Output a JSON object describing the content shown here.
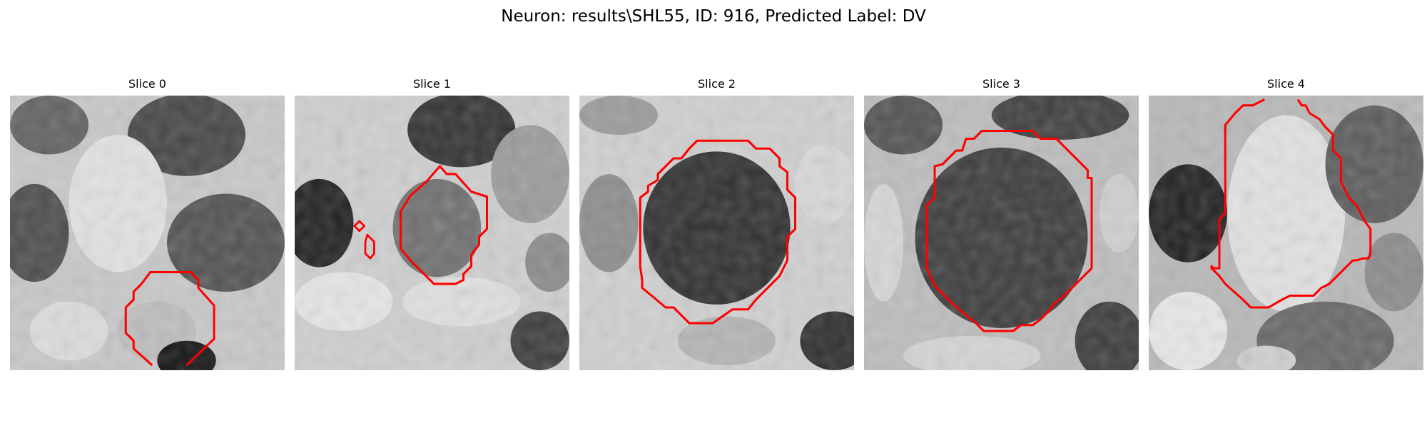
{
  "figure": {
    "title": "Neuron: results\\SHL55, ID: 916, Predicted Label: DV"
  },
  "slices": [
    {
      "title": "Slice 0"
    },
    {
      "title": "Slice 1"
    },
    {
      "title": "Slice 2"
    },
    {
      "title": "Slice 3"
    },
    {
      "title": "Slice 4"
    }
  ],
  "colors": {
    "contour": "#ff0000",
    "colormap": "gray"
  }
}
